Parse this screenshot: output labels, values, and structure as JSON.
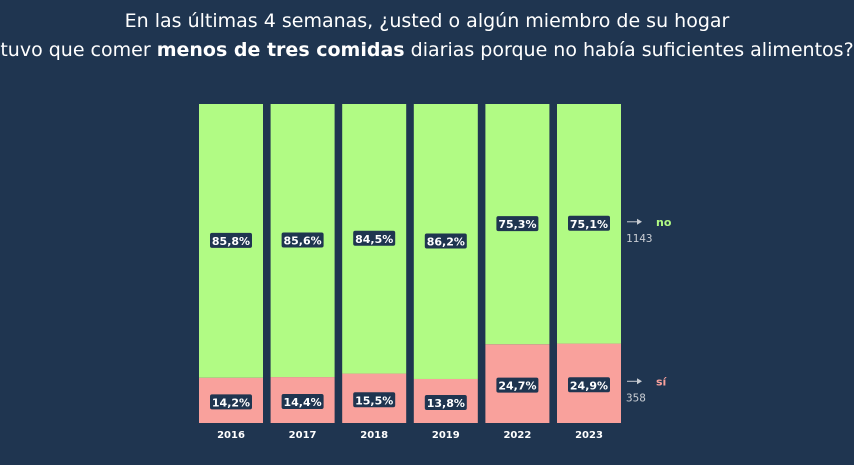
{
  "title": {
    "line1": "En las últimas 4 semanas, ¿usted o algún miembro de su hogar",
    "line2_pre": "tuvo que comer ",
    "line2_bold": "menos de tres comidas",
    "line2_post": " diarias porque no había suficientes alimentos?"
  },
  "chart_data": {
    "type": "bar",
    "stacked": true,
    "percent": true,
    "categories": [
      "2016",
      "2017",
      "2018",
      "2019",
      "2022",
      "2023"
    ],
    "series": [
      {
        "name": "sí",
        "values": [
          14.2,
          14.4,
          15.5,
          13.8,
          24.7,
          24.9
        ],
        "labels": [
          "14,2%",
          "14,4%",
          "15,5%",
          "13,8%",
          "24,7%",
          "24,9%"
        ],
        "color": "#f9a19c",
        "count": "358"
      },
      {
        "name": "no",
        "values": [
          85.8,
          85.6,
          84.5,
          86.2,
          75.3,
          75.1
        ],
        "labels": [
          "85,8%",
          "85,6%",
          "84,5%",
          "86,2%",
          "75,3%",
          "75,1%"
        ],
        "color": "#b1fb84",
        "count": "1143"
      }
    ],
    "ylim": [
      0,
      100
    ],
    "legend": "right",
    "grid": false
  },
  "colors": {
    "background": "#1f3550",
    "label_bg": "#1f3550"
  }
}
